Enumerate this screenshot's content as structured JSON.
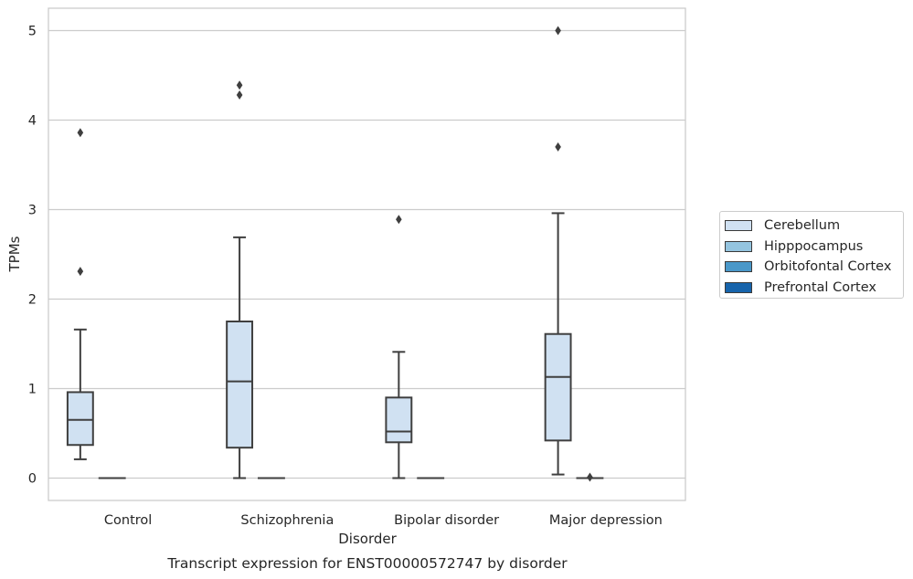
{
  "chart_data": {
    "type": "box",
    "title": "Transcript expression for ENST00000572747 by disorder",
    "xlabel": "Disorder",
    "ylabel": "TPMs",
    "categories": [
      "Control",
      "Schizophrenia",
      "Bipolar disorder",
      "Major depression"
    ],
    "ylim": [
      -0.25,
      5.25
    ],
    "yticks": [
      0,
      1,
      2,
      3,
      4,
      5
    ],
    "grid": true,
    "legend_position": "right",
    "series": [
      {
        "name": "Cerebellum",
        "color": "#d0e1f2",
        "boxes": [
          {
            "whisker_low": 0.21,
            "q1": 0.37,
            "median": 0.65,
            "q3": 0.96,
            "whisker_high": 1.66,
            "outliers": [
              2.31,
              3.86
            ]
          },
          {
            "whisker_low": 0.0,
            "q1": 0.34,
            "median": 1.08,
            "q3": 1.75,
            "whisker_high": 2.69,
            "outliers": [
              4.28,
              4.39
            ]
          },
          {
            "whisker_low": 0.0,
            "q1": 0.4,
            "median": 0.52,
            "q3": 0.9,
            "whisker_high": 1.41,
            "outliers": [
              2.89
            ]
          },
          {
            "whisker_low": 0.04,
            "q1": 0.42,
            "median": 1.13,
            "q3": 1.61,
            "whisker_high": 2.96,
            "outliers": [
              3.7,
              5.0
            ]
          }
        ]
      },
      {
        "name": "Hipppocampus",
        "color": "#94c4df",
        "boxes": [
          {
            "whisker_low": 0,
            "q1": 0,
            "median": 0,
            "q3": 0,
            "whisker_high": 0,
            "outliers": []
          },
          {
            "whisker_low": 0,
            "q1": 0,
            "median": 0,
            "q3": 0,
            "whisker_high": 0,
            "outliers": []
          },
          {
            "whisker_low": 0,
            "q1": 0,
            "median": 0,
            "q3": 0,
            "whisker_high": 0,
            "outliers": []
          },
          {
            "whisker_low": 0,
            "q1": 0,
            "median": 0,
            "q3": 0,
            "whisker_high": 0,
            "outliers": [
              0.01
            ]
          }
        ]
      },
      {
        "name": "Orbitofontal Cortex",
        "color": "#4a98c9",
        "boxes": []
      },
      {
        "name": "Prefrontal Cortex",
        "color": "#1764ab",
        "boxes": []
      }
    ]
  }
}
